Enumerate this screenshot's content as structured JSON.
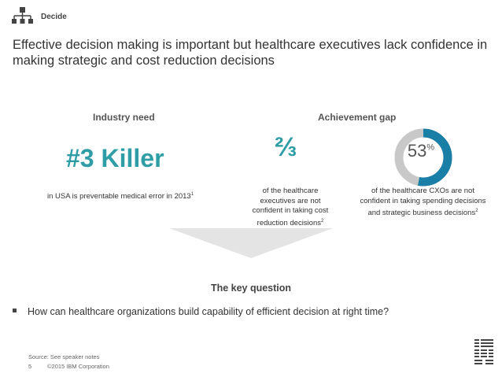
{
  "header": {
    "label": "Decide",
    "icon": "hierarchy-icon"
  },
  "title": "Effective decision making is important but healthcare executives lack confidence in making strategic and cost reduction decisions",
  "industry_need": {
    "heading": "Industry need",
    "headline": "#3 Killer",
    "caption": "in USA is preventable medical error in 2013",
    "caption_ref": "1"
  },
  "achievement_gap": {
    "heading": "Achievement gap",
    "stat1": {
      "value": "⅔",
      "caption": "of the healthcare executives are not confident in taking cost reduction decisions",
      "caption_ref": "2"
    },
    "stat2": {
      "value": "53",
      "unit": "%",
      "fraction": 0.53,
      "caption": "of the healthcare CXOs are not confident in taking spending decisions and strategic business decisions",
      "caption_ref": "2"
    }
  },
  "key_question": {
    "heading": "The key question",
    "bullet": "How can healthcare organizations build capability of efficient decision at right time?"
  },
  "footer": {
    "source": "Source: See speaker notes",
    "page": "5",
    "copyright": "©2015 IBM Corporation",
    "logo": "IBM"
  },
  "colors": {
    "accent": "#2f9da6",
    "donut_dark": "#1a7fa6",
    "donut_light": "#34a9d6",
    "donut_gray": "#c8c8c8",
    "chevron": "#e2e2e2"
  }
}
